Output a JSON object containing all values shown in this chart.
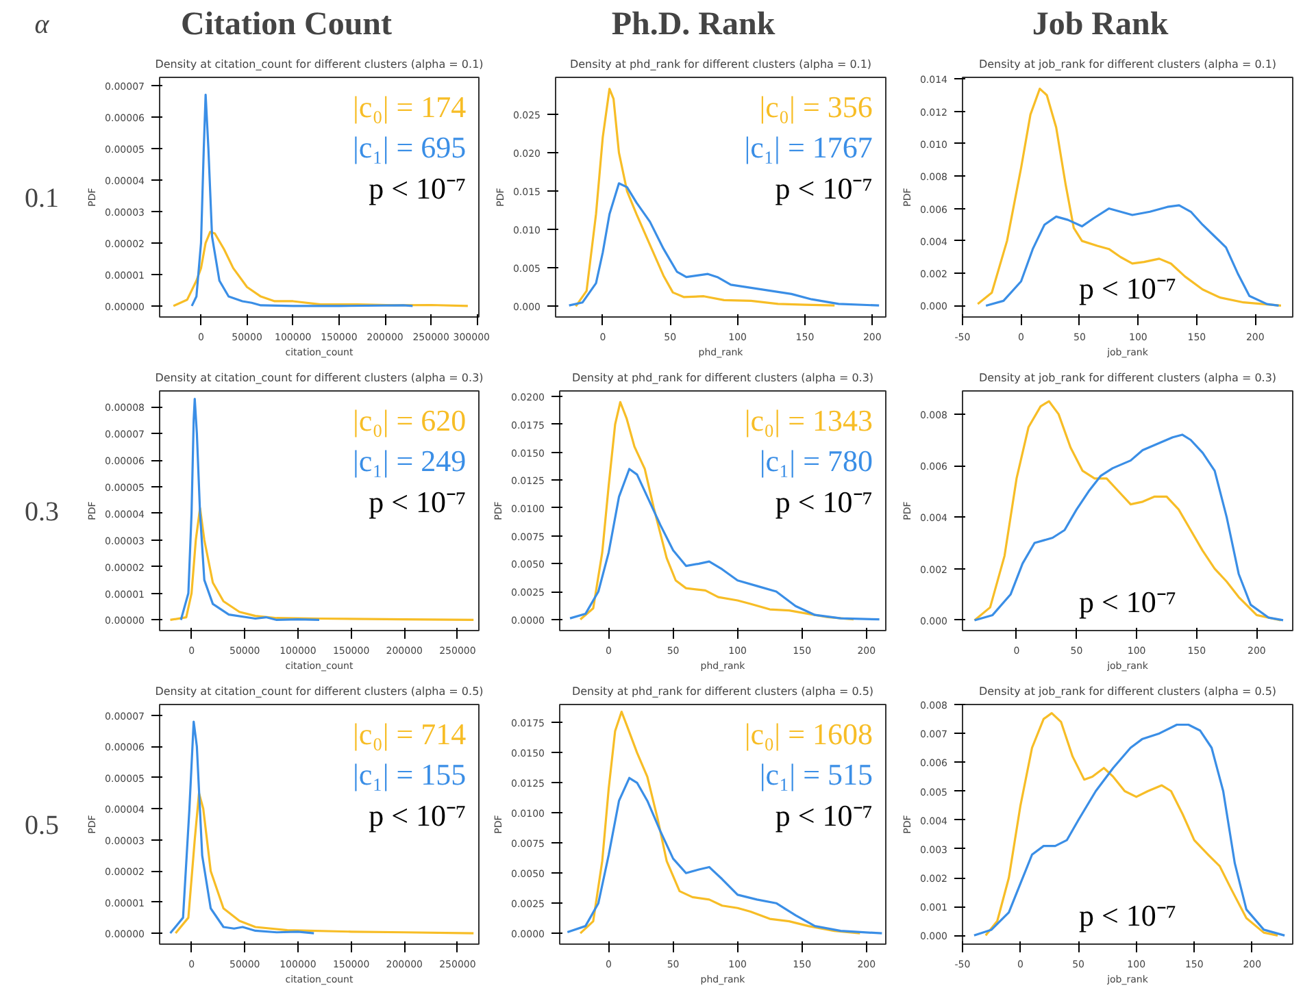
{
  "chart_data": [
    {
      "type": "other",
      "annotations": [
        "α",
        "Citation Count",
        "Ph.D. Rank",
        "Job Rank",
        "0.1",
        "0.3",
        "0.5"
      ]
    },
    {
      "type": "line",
      "title": "Density at citation_count for different clusters (alpha = 0.1)",
      "xlabel": "citation_count",
      "ylabel": "PDF",
      "xlim": [
        -45000,
        302000
      ],
      "ylim": [
        -3.5e-06,
        7.25e-05
      ],
      "xticks": [
        0,
        50000,
        100000,
        150000,
        200000,
        250000,
        300000
      ],
      "yticks": [
        {
          "value": 0,
          "label": "0.00000"
        },
        {
          "value": 1e-05,
          "label": "0.00001"
        },
        {
          "value": 2e-05,
          "label": "0.00002"
        },
        {
          "value": 3e-05,
          "label": "0.00003"
        },
        {
          "value": 4e-05,
          "label": "0.00004"
        },
        {
          "value": 5e-05,
          "label": "0.00005"
        },
        {
          "value": 6e-05,
          "label": "0.00006"
        },
        {
          "value": 7e-05,
          "label": "0.00007"
        }
      ],
      "annotations": [
        "|c₀| = 174",
        "|c₁| = 695",
        "p < 10⁻⁷"
      ],
      "series": [
        {
          "color": "#f7bd26",
          "x": [
            -30000,
            -15000,
            -5000,
            0,
            5000,
            10000,
            15000,
            25000,
            35000,
            50000,
            65000,
            80000,
            100000,
            130000,
            170000,
            210000,
            250000,
            290000
          ],
          "values": [
            0,
            2e-06,
            8e-06,
            1.2e-05,
            2e-05,
            2.35e-05,
            2.3e-05,
            1.8e-05,
            1.2e-05,
            6e-06,
            3e-06,
            1.5e-06,
            1.5e-06,
            5e-07,
            5e-07,
            2e-07,
            3e-07,
            0
          ]
        },
        {
          "color": "#3a8ee6",
          "x": [
            -10000,
            -5000,
            0,
            3000,
            5000,
            8000,
            12000,
            20000,
            30000,
            45000,
            55000,
            65000,
            100000,
            150000,
            220000,
            230000
          ],
          "values": [
            0,
            3e-06,
            2e-05,
            5e-05,
            6.7e-05,
            5e-05,
            2.2e-05,
            8e-06,
            3e-06,
            1.5e-06,
            1e-06,
            2e-07,
            0,
            0,
            2e-07,
            0
          ]
        }
      ]
    },
    {
      "type": "line",
      "title": "Density at phd_rank for different clusters (alpha = 0.1)",
      "xlabel": "phd_rank",
      "ylabel": "PDF",
      "xlim": [
        -35,
        210
      ],
      "ylim": [
        -0.0014,
        0.0298
      ],
      "xticks": [
        0,
        50,
        100,
        150,
        200
      ],
      "yticks": [
        {
          "value": 0,
          "label": "0.000"
        },
        {
          "value": 0.005,
          "label": "0.005"
        },
        {
          "value": 0.01,
          "label": "0.010"
        },
        {
          "value": 0.015,
          "label": "0.015"
        },
        {
          "value": 0.02,
          "label": "0.020"
        },
        {
          "value": 0.025,
          "label": "0.025"
        }
      ],
      "annotations": [
        "|c₀| = 356",
        "|c₁| = 1767",
        "p < 10⁻⁷"
      ],
      "series": [
        {
          "color": "#f7bd26",
          "x": [
            -20,
            -12,
            -5,
            0,
            5,
            8,
            12,
            18,
            25,
            35,
            45,
            52,
            60,
            75,
            90,
            110,
            130,
            150,
            172
          ],
          "values": [
            0,
            0.002,
            0.012,
            0.022,
            0.0283,
            0.027,
            0.02,
            0.015,
            0.012,
            0.008,
            0.004,
            0.0018,
            0.0012,
            0.0013,
            0.0008,
            0.0007,
            0.0003,
            0.0002,
            0.0001
          ]
        },
        {
          "color": "#3a8ee6",
          "x": [
            -25,
            -15,
            -5,
            0,
            5,
            12,
            18,
            25,
            35,
            45,
            55,
            62,
            70,
            78,
            85,
            95,
            110,
            125,
            140,
            155,
            175,
            205
          ],
          "values": [
            0.0001,
            0.0005,
            0.003,
            0.007,
            0.012,
            0.016,
            0.0155,
            0.0135,
            0.011,
            0.0075,
            0.0045,
            0.0038,
            0.004,
            0.0042,
            0.0038,
            0.0028,
            0.0024,
            0.002,
            0.0016,
            0.0009,
            0.0003,
            0.0001
          ]
        }
      ]
    },
    {
      "type": "line",
      "title": "Density at job_rank for different clusters (alpha = 0.1)",
      "xlabel": "job_rank",
      "ylabel": "PDF",
      "xlim": [
        -50,
        232
      ],
      "ylim": [
        -0.0007,
        0.0141
      ],
      "xticks": [
        -50,
        0,
        50,
        100,
        150,
        200
      ],
      "yticks": [
        {
          "value": 0,
          "label": "0.000"
        },
        {
          "value": 0.002,
          "label": "0.002"
        },
        {
          "value": 0.004,
          "label": "0.004"
        },
        {
          "value": 0.006,
          "label": "0.006"
        },
        {
          "value": 0.008,
          "label": "0.008"
        },
        {
          "value": 0.01,
          "label": "0.010"
        },
        {
          "value": 0.012,
          "label": "0.012"
        },
        {
          "value": 0.014,
          "label": "0.014"
        }
      ],
      "annotations": [
        "p < 10⁻⁷"
      ],
      "series": [
        {
          "color": "#f7bd26",
          "x": [
            -37,
            -25,
            -12,
            0,
            8,
            16,
            22,
            30,
            38,
            45,
            52,
            65,
            75,
            85,
            95,
            105,
            118,
            128,
            140,
            155,
            170,
            190,
            222
          ],
          "values": [
            0.0001,
            0.0008,
            0.004,
            0.0085,
            0.0118,
            0.0134,
            0.013,
            0.011,
            0.0075,
            0.0048,
            0.004,
            0.0037,
            0.0035,
            0.003,
            0.0026,
            0.0027,
            0.0029,
            0.0026,
            0.0018,
            0.001,
            0.0005,
            0.0002,
            0
          ]
        },
        {
          "color": "#3a8ee6",
          "x": [
            -30,
            -15,
            0,
            10,
            20,
            30,
            40,
            52,
            62,
            75,
            85,
            95,
            110,
            125,
            135,
            145,
            155,
            165,
            175,
            185,
            195,
            210,
            220
          ],
          "values": [
            0,
            0.0003,
            0.0015,
            0.0035,
            0.005,
            0.0055,
            0.0053,
            0.0049,
            0.0054,
            0.006,
            0.0058,
            0.0056,
            0.0058,
            0.0061,
            0.0062,
            0.0058,
            0.005,
            0.0043,
            0.0036,
            0.002,
            0.0006,
            0.0001,
            0
          ]
        }
      ]
    },
    {
      "type": "line",
      "title": "Density at citation_count for different clusters (alpha = 0.3)",
      "xlabel": "citation_count",
      "ylabel": "PDF",
      "xlim": [
        -30000,
        270000
      ],
      "ylim": [
        -4e-06,
        8.6e-05
      ],
      "xticks": [
        0,
        50000,
        100000,
        150000,
        200000,
        250000
      ],
      "yticks": [
        {
          "value": 0,
          "label": "0.00000"
        },
        {
          "value": 1e-05,
          "label": "0.00001"
        },
        {
          "value": 2e-05,
          "label": "0.00002"
        },
        {
          "value": 3e-05,
          "label": "0.00003"
        },
        {
          "value": 4e-05,
          "label": "0.00004"
        },
        {
          "value": 5e-05,
          "label": "0.00005"
        },
        {
          "value": 6e-05,
          "label": "0.00006"
        },
        {
          "value": 7e-05,
          "label": "0.00007"
        },
        {
          "value": 8e-05,
          "label": "0.00008"
        }
      ],
      "annotations": [
        "|c₀| = 620",
        "|c₁| = 249",
        "p < 10⁻⁷"
      ],
      "series": [
        {
          "color": "#f7bd26",
          "x": [
            -20000,
            -5000,
            0,
            4000,
            8000,
            12000,
            20000,
            30000,
            45000,
            60000,
            80000,
            120000,
            200000,
            265000
          ],
          "values": [
            0,
            1e-06,
            1e-05,
            3e-05,
            4.2e-05,
            3e-05,
            1.4e-05,
            7e-06,
            3e-06,
            1.5e-06,
            7e-07,
            5e-07,
            2e-07,
            0
          ]
        },
        {
          "color": "#3a8ee6",
          "x": [
            -10000,
            -3000,
            0,
            2000,
            3000,
            5000,
            8000,
            12000,
            20000,
            35000,
            60000,
            70000,
            80000,
            100000,
            120000
          ],
          "values": [
            0,
            1e-05,
            4e-05,
            7.5e-05,
            8.3e-05,
            7e-05,
            4e-05,
            1.5e-05,
            6e-06,
            2e-06,
            5e-07,
            1e-06,
            0,
            2e-07,
            0
          ]
        }
      ]
    },
    {
      "type": "line",
      "title": "Density at phd_rank for different clusters (alpha = 0.3)",
      "xlabel": "phd_rank",
      "ylabel": "PDF",
      "xlim": [
        -38,
        215
      ],
      "ylim": [
        -0.001,
        0.0205
      ],
      "xticks": [
        0,
        50,
        100,
        150,
        200
      ],
      "yticks": [
        {
          "value": 0,
          "label": "0.0000"
        },
        {
          "value": 0.0025,
          "label": "0.0025"
        },
        {
          "value": 0.005,
          "label": "0.0050"
        },
        {
          "value": 0.0075,
          "label": "0.0075"
        },
        {
          "value": 0.01,
          "label": "0.0100"
        },
        {
          "value": 0.0125,
          "label": "0.0125"
        },
        {
          "value": 0.015,
          "label": "0.0150"
        },
        {
          "value": 0.0175,
          "label": "0.0175"
        },
        {
          "value": 0.02,
          "label": "0.0200"
        }
      ],
      "annotations": [
        "|c₀| = 1343",
        "|c₁| = 780",
        "p < 10⁻⁷"
      ],
      "series": [
        {
          "color": "#f7bd26",
          "x": [
            -22,
            -12,
            -5,
            0,
            5,
            9,
            14,
            20,
            28,
            35,
            45,
            52,
            60,
            75,
            85,
            100,
            110,
            125,
            140,
            155,
            170,
            190
          ],
          "values": [
            0,
            0.001,
            0.006,
            0.012,
            0.0175,
            0.0195,
            0.018,
            0.0155,
            0.0135,
            0.01,
            0.0055,
            0.0035,
            0.0028,
            0.0026,
            0.002,
            0.0017,
            0.0014,
            0.0009,
            0.0008,
            0.0005,
            0.0002,
            0
          ]
        },
        {
          "color": "#3a8ee6",
          "x": [
            -30,
            -18,
            -8,
            0,
            8,
            16,
            22,
            30,
            40,
            50,
            60,
            70,
            78,
            88,
            100,
            115,
            130,
            145,
            160,
            180,
            210
          ],
          "values": [
            0.0001,
            0.0005,
            0.0025,
            0.006,
            0.011,
            0.0135,
            0.013,
            0.011,
            0.0085,
            0.0062,
            0.0048,
            0.005,
            0.0052,
            0.0045,
            0.0035,
            0.003,
            0.0025,
            0.0012,
            0.0004,
            0.0001,
            0
          ]
        }
      ]
    },
    {
      "type": "line",
      "title": "Density at job_rank for different clusters (alpha = 0.3)",
      "xlabel": "job_rank",
      "ylabel": "PDF",
      "xlim": [
        -45,
        230
      ],
      "ylim": [
        -0.0004,
        0.0089
      ],
      "xticks": [
        0,
        50,
        100,
        150,
        200
      ],
      "yticks": [
        {
          "value": 0,
          "label": "0.000"
        },
        {
          "value": 0.002,
          "label": "0.002"
        },
        {
          "value": 0.004,
          "label": "0.004"
        },
        {
          "value": 0.006,
          "label": "0.006"
        },
        {
          "value": 0.008,
          "label": "0.008"
        }
      ],
      "annotations": [
        "p < 10⁻⁷"
      ],
      "series": [
        {
          "color": "#f7bd26",
          "x": [
            -35,
            -22,
            -10,
            0,
            10,
            20,
            27,
            35,
            45,
            55,
            65,
            75,
            85,
            95,
            105,
            115,
            125,
            135,
            145,
            155,
            165,
            175,
            185,
            200,
            220
          ],
          "values": [
            0,
            0.0005,
            0.0025,
            0.0055,
            0.0075,
            0.0083,
            0.0085,
            0.008,
            0.0067,
            0.0058,
            0.0055,
            0.0055,
            0.005,
            0.0045,
            0.0046,
            0.0048,
            0.0048,
            0.0043,
            0.0035,
            0.0027,
            0.002,
            0.0015,
            0.0009,
            0.0002,
            0
          ]
        },
        {
          "color": "#3a8ee6",
          "x": [
            -35,
            -20,
            -5,
            5,
            15,
            30,
            40,
            50,
            60,
            70,
            80,
            95,
            105,
            120,
            130,
            138,
            145,
            155,
            165,
            175,
            185,
            195,
            210,
            222
          ],
          "values": [
            0,
            0.0002,
            0.001,
            0.0022,
            0.003,
            0.0032,
            0.0035,
            0.0043,
            0.005,
            0.0056,
            0.0059,
            0.0062,
            0.0066,
            0.0069,
            0.0071,
            0.0072,
            0.007,
            0.0065,
            0.0058,
            0.004,
            0.0018,
            0.0006,
            0.0001,
            0
          ]
        }
      ]
    },
    {
      "type": "line",
      "title": "Density at citation_count for different clusters (alpha = 0.5)",
      "xlabel": "citation_count",
      "ylabel": "PDF",
      "xlim": [
        -30000,
        270000
      ],
      "ylim": [
        -3.5e-06,
        7.35e-05
      ],
      "xticks": [
        0,
        50000,
        100000,
        150000,
        200000,
        250000
      ],
      "yticks": [
        {
          "value": 0,
          "label": "0.00000"
        },
        {
          "value": 1e-05,
          "label": "0.00001"
        },
        {
          "value": 2e-05,
          "label": "0.00002"
        },
        {
          "value": 3e-05,
          "label": "0.00003"
        },
        {
          "value": 4e-05,
          "label": "0.00004"
        },
        {
          "value": 5e-05,
          "label": "0.00005"
        },
        {
          "value": 6e-05,
          "label": "0.00006"
        },
        {
          "value": 7e-05,
          "label": "0.00007"
        }
      ],
      "annotations": [
        "|c₀| = 714",
        "|c₁| = 155",
        "p < 10⁻⁷"
      ],
      "series": [
        {
          "color": "#f7bd26",
          "x": [
            -15000,
            -3000,
            3000,
            7000,
            11000,
            18000,
            30000,
            45000,
            60000,
            90000,
            150000,
            200000,
            265000
          ],
          "values": [
            0,
            5e-06,
            3e-05,
            4.5e-05,
            4e-05,
            2e-05,
            8e-06,
            4e-06,
            2e-06,
            1e-06,
            5e-07,
            3e-07,
            0
          ]
        },
        {
          "color": "#3a8ee6",
          "x": [
            -20000,
            -8000,
            -2000,
            2000,
            5000,
            10000,
            18000,
            30000,
            40000,
            48000,
            60000,
            80000,
            100000,
            115000
          ],
          "values": [
            0,
            5e-06,
            4e-05,
            6.8e-05,
            6e-05,
            2.5e-05,
            8e-06,
            2e-06,
            1.5e-06,
            2e-06,
            8e-07,
            3e-07,
            5e-07,
            0
          ]
        }
      ]
    },
    {
      "type": "line",
      "title": "Density at phd_rank for different clusters (alpha = 0.5)",
      "xlabel": "phd_rank",
      "ylabel": "PDF",
      "xlim": [
        -38,
        215
      ],
      "ylim": [
        -0.0009,
        0.019
      ],
      "xticks": [
        0,
        50,
        100,
        150,
        200
      ],
      "yticks": [
        {
          "value": 0,
          "label": "0.0000"
        },
        {
          "value": 0.0025,
          "label": "0.0025"
        },
        {
          "value": 0.005,
          "label": "0.0050"
        },
        {
          "value": 0.0075,
          "label": "0.0075"
        },
        {
          "value": 0.01,
          "label": "0.0100"
        },
        {
          "value": 0.0125,
          "label": "0.0125"
        },
        {
          "value": 0.015,
          "label": "0.0150"
        },
        {
          "value": 0.0175,
          "label": "0.0175"
        }
      ],
      "annotations": [
        "|c₀| = 1608",
        "|c₁| = 515",
        "p < 10⁻⁷"
      ],
      "series": [
        {
          "color": "#f7bd26",
          "x": [
            -22,
            -12,
            -5,
            0,
            5,
            10,
            15,
            22,
            30,
            38,
            45,
            55,
            65,
            78,
            88,
            100,
            110,
            125,
            140,
            155,
            175,
            195
          ],
          "values": [
            0,
            0.001,
            0.006,
            0.012,
            0.0168,
            0.0184,
            0.017,
            0.015,
            0.013,
            0.0095,
            0.006,
            0.0035,
            0.003,
            0.0028,
            0.0023,
            0.0021,
            0.0018,
            0.0012,
            0.001,
            0.0006,
            0.0002,
            0
          ]
        },
        {
          "color": "#3a8ee6",
          "x": [
            -32,
            -18,
            -8,
            0,
            8,
            16,
            22,
            30,
            40,
            50,
            60,
            70,
            78,
            88,
            100,
            115,
            130,
            145,
            160,
            180,
            212
          ],
          "values": [
            0.0001,
            0.0006,
            0.0025,
            0.0065,
            0.011,
            0.0129,
            0.0125,
            0.011,
            0.0085,
            0.0062,
            0.005,
            0.0053,
            0.0055,
            0.0045,
            0.0032,
            0.0028,
            0.0025,
            0.0015,
            0.0006,
            0.0002,
            0
          ]
        }
      ]
    },
    {
      "type": "line",
      "title": "Density at job_rank for different clusters (alpha = 0.5)",
      "xlabel": "job_rank",
      "ylabel": "PDF",
      "xlim": [
        -50,
        235
      ],
      "ylim": [
        -0.0003,
        0.008
      ],
      "xticks": [
        -50,
        0,
        50,
        100,
        150,
        200
      ],
      "yticks": [
        {
          "value": 0,
          "label": "0.000"
        },
        {
          "value": 0.001,
          "label": "0.001"
        },
        {
          "value": 0.002,
          "label": "0.002"
        },
        {
          "value": 0.003,
          "label": "0.003"
        },
        {
          "value": 0.004,
          "label": "0.004"
        },
        {
          "value": 0.005,
          "label": "0.005"
        },
        {
          "value": 0.006,
          "label": "0.006"
        },
        {
          "value": 0.007,
          "label": "0.007"
        },
        {
          "value": 0.008,
          "label": "0.008"
        }
      ],
      "annotations": [
        "p < 10⁻⁷"
      ],
      "series": [
        {
          "color": "#f7bd26",
          "x": [
            -30,
            -20,
            -10,
            0,
            10,
            20,
            27,
            35,
            45,
            55,
            62,
            72,
            80,
            90,
            100,
            110,
            122,
            130,
            140,
            150,
            162,
            172,
            182,
            195,
            210,
            222
          ],
          "values": [
            0,
            0.0005,
            0.002,
            0.0045,
            0.0065,
            0.0075,
            0.0077,
            0.0074,
            0.0062,
            0.0054,
            0.0055,
            0.0058,
            0.0055,
            0.005,
            0.0048,
            0.005,
            0.0052,
            0.005,
            0.0042,
            0.0033,
            0.0028,
            0.0024,
            0.0016,
            0.0006,
            0.0001,
            0
          ]
        },
        {
          "color": "#3a8ee6",
          "x": [
            -40,
            -25,
            -10,
            0,
            10,
            20,
            30,
            40,
            50,
            65,
            80,
            95,
            105,
            120,
            135,
            145,
            155,
            165,
            175,
            185,
            195,
            210,
            228
          ],
          "values": [
            0,
            0.0002,
            0.0008,
            0.0018,
            0.0028,
            0.0031,
            0.0031,
            0.0033,
            0.004,
            0.005,
            0.0058,
            0.0065,
            0.0068,
            0.007,
            0.0073,
            0.0073,
            0.0071,
            0.0065,
            0.005,
            0.0025,
            0.0009,
            0.0002,
            0
          ]
        }
      ]
    }
  ]
}
